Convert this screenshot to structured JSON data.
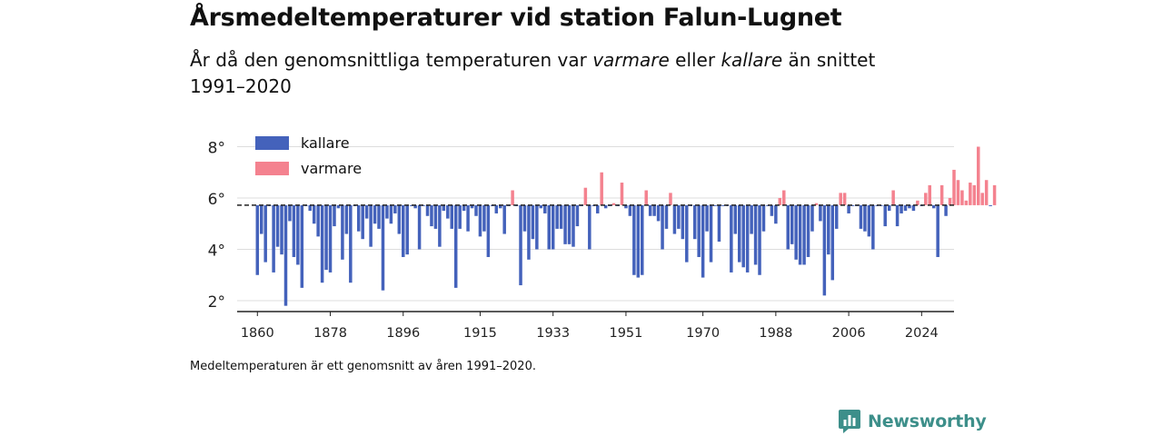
{
  "title": "Årsmedeltemperaturer vid station Falun-Lugnet",
  "subtitle": {
    "part1": "År då den genomsnittliga temperaturen var ",
    "warmer": "varmare",
    "part2": " eller ",
    "colder": "kallare",
    "part3": " än snittet 1991–2020"
  },
  "footnote": "Medeltemperaturen är ett genomsnitt av åren 1991–2020.",
  "brand": {
    "name": "Newsworthy",
    "icon": "newsworthy-logo-icon",
    "color": "#3d8f8a"
  },
  "chart_data": {
    "type": "bar",
    "baseline": 5.72,
    "ylim": [
      1.5,
      8.5
    ],
    "yticks": [
      2,
      4,
      6,
      8
    ],
    "ytick_labels": [
      "2°",
      "4°",
      "6°",
      "8°"
    ],
    "xlim": [
      1855,
      2032
    ],
    "xticks": [
      1860,
      1878,
      1896,
      1915,
      1933,
      1951,
      1970,
      1988,
      2006,
      2024
    ],
    "xtick_labels": [
      "1860",
      "1878",
      "1896",
      "1915",
      "1933",
      "1951",
      "1970",
      "1988",
      "2006",
      "2024"
    ],
    "grid": true,
    "legend": {
      "placement": "top-left",
      "items": [
        {
          "label": "kallare",
          "color": "#4462bb"
        },
        {
          "label": "varmare",
          "color": "#f4828f"
        }
      ]
    },
    "colors": {
      "colder": "#4462bb",
      "warmer": "#f4828f",
      "baseline": "#222222",
      "grid": "#dddddd"
    },
    "start_year": 1860,
    "values": [
      3.0,
      4.6,
      3.5,
      5.7,
      3.1,
      4.1,
      3.8,
      1.8,
      5.1,
      3.7,
      3.4,
      2.5,
      5.7,
      5.5,
      5.0,
      4.5,
      2.7,
      3.2,
      3.1,
      4.9,
      5.6,
      3.6,
      4.6,
      2.7,
      5.7,
      4.7,
      4.4,
      5.2,
      4.1,
      5.0,
      4.8,
      2.4,
      5.2,
      5.0,
      5.4,
      4.6,
      3.7,
      3.8,
      5.7,
      5.6,
      4.0,
      5.7,
      5.3,
      4.9,
      4.8,
      4.1,
      5.5,
      5.2,
      4.8,
      2.5,
      4.8,
      5.5,
      4.7,
      5.6,
      5.3,
      4.5,
      4.7,
      3.7,
      5.7,
      5.4,
      5.6,
      4.6,
      5.7,
      6.3,
      5.7,
      2.6,
      4.7,
      3.6,
      4.4,
      4.0,
      5.6,
      5.4,
      4.0,
      4.0,
      4.8,
      4.8,
      4.2,
      4.2,
      4.1,
      4.9,
      5.7,
      6.4,
      4.0,
      5.7,
      5.4,
      7.0,
      5.6,
      5.7,
      5.8,
      5.7,
      6.6,
      5.6,
      5.3,
      3.0,
      2.9,
      3.0,
      6.3,
      5.3,
      5.3,
      5.1,
      4.0,
      4.8,
      6.2,
      4.6,
      4.8,
      4.4,
      3.5,
      5.7,
      4.4,
      3.7,
      2.9,
      4.7,
      3.5,
      5.7,
      4.3,
      5.7,
      5.7,
      3.1,
      4.6,
      3.5,
      3.3,
      3.1,
      4.6,
      3.4,
      3.0,
      4.7,
      5.7,
      5.3,
      5.0,
      6.0,
      6.3,
      4.0,
      4.2,
      3.6,
      3.4,
      3.4,
      3.7,
      4.7,
      5.8,
      5.1,
      2.2,
      3.8,
      2.8,
      4.8,
      6.2,
      6.2,
      5.4,
      5.7,
      5.7,
      4.8,
      4.7,
      4.5,
      4.0,
      5.7,
      5.7,
      4.9,
      5.5,
      6.3,
      4.9,
      5.4,
      5.5,
      5.6,
      5.5,
      5.9,
      5.7,
      6.2,
      6.5,
      5.6,
      3.7,
      6.5,
      5.3,
      6.0,
      7.1,
      6.7,
      6.3,
      5.9,
      6.6,
      6.5,
      8.0,
      6.2,
      6.7,
      5.7,
      6.5
    ]
  }
}
